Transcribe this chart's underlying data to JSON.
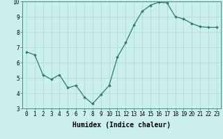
{
  "x": [
    0,
    1,
    2,
    3,
    4,
    5,
    6,
    7,
    8,
    9,
    10,
    11,
    12,
    13,
    14,
    15,
    16,
    17,
    18,
    19,
    20,
    21,
    22,
    23
  ],
  "y": [
    6.7,
    6.5,
    5.2,
    4.9,
    5.2,
    4.35,
    4.5,
    3.75,
    3.3,
    3.9,
    4.5,
    6.35,
    7.3,
    8.45,
    9.35,
    9.75,
    9.95,
    9.9,
    9.0,
    8.85,
    8.55,
    8.35,
    8.3,
    8.3
  ],
  "line_color": "#2d7d6e",
  "marker": "D",
  "markersize": 1.8,
  "linewidth": 0.9,
  "xlabel": "Humidex (Indice chaleur)",
  "xlabel_fontsize": 7,
  "background_color": "#cbeeee",
  "grid_color": "#aad8d8",
  "ylim": [
    3,
    10
  ],
  "xlim_min": -0.5,
  "xlim_max": 23.5,
  "yticks": [
    3,
    4,
    5,
    6,
    7,
    8,
    9,
    10
  ],
  "xticks": [
    0,
    1,
    2,
    3,
    4,
    5,
    6,
    7,
    8,
    9,
    10,
    11,
    12,
    13,
    14,
    15,
    16,
    17,
    18,
    19,
    20,
    21,
    22,
    23
  ],
  "tick_fontsize": 5.5,
  "spine_color": "#2d7d6e"
}
